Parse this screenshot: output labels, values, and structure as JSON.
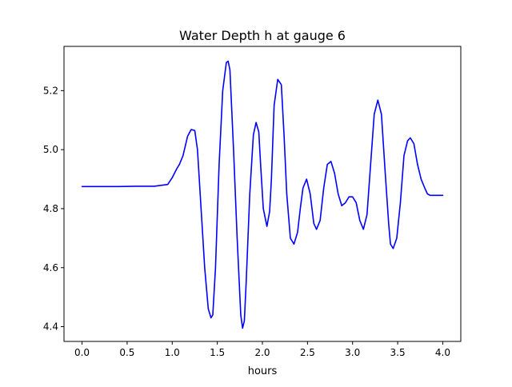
{
  "chart_data": {
    "type": "line",
    "title": "Water Depth h at gauge 6",
    "xlabel": "hours",
    "ylabel": "",
    "xlim": [
      -0.2,
      4.2
    ],
    "ylim": [
      4.35,
      5.35
    ],
    "xticks": [
      0.0,
      0.5,
      1.0,
      1.5,
      2.0,
      2.5,
      3.0,
      3.5,
      4.0
    ],
    "xtick_labels": [
      "0.0",
      "0.5",
      "1.0",
      "1.5",
      "2.0",
      "2.5",
      "3.0",
      "3.5",
      "4.0"
    ],
    "yticks": [
      4.4,
      4.6,
      4.8,
      5.0,
      5.2
    ],
    "ytick_labels": [
      "4.4",
      "4.6",
      "4.8",
      "5.0",
      "5.2"
    ],
    "grid": false,
    "legend": "none",
    "series": [
      {
        "color": "#0000ff",
        "x": [
          0.0,
          0.2,
          0.4,
          0.6,
          0.8,
          0.95,
          1.0,
          1.05,
          1.08,
          1.12,
          1.17,
          1.21,
          1.25,
          1.28,
          1.32,
          1.36,
          1.4,
          1.43,
          1.45,
          1.48,
          1.52,
          1.56,
          1.6,
          1.62,
          1.64,
          1.68,
          1.72,
          1.76,
          1.78,
          1.8,
          1.82,
          1.86,
          1.9,
          1.93,
          1.96,
          1.98,
          2.01,
          2.05,
          2.08,
          2.1,
          2.13,
          2.17,
          2.21,
          2.24,
          2.27,
          2.31,
          2.35,
          2.39,
          2.42,
          2.45,
          2.49,
          2.53,
          2.57,
          2.6,
          2.64,
          2.68,
          2.72,
          2.76,
          2.8,
          2.84,
          2.88,
          2.92,
          2.96,
          3.0,
          3.04,
          3.08,
          3.12,
          3.16,
          3.2,
          3.24,
          3.28,
          3.32,
          3.36,
          3.4,
          3.42,
          3.45,
          3.49,
          3.53,
          3.57,
          3.61,
          3.64,
          3.68,
          3.72,
          3.76,
          3.8,
          3.83,
          3.86,
          3.9,
          3.95,
          4.0
        ],
        "y": [
          4.875,
          4.875,
          4.875,
          4.876,
          4.876,
          4.882,
          4.905,
          4.935,
          4.95,
          4.98,
          5.045,
          5.068,
          5.065,
          5.0,
          4.8,
          4.6,
          4.46,
          4.43,
          4.44,
          4.6,
          4.95,
          5.2,
          5.295,
          5.3,
          5.27,
          5.0,
          4.7,
          4.44,
          4.395,
          4.42,
          4.55,
          4.85,
          5.05,
          5.092,
          5.06,
          4.95,
          4.8,
          4.74,
          4.79,
          4.9,
          5.15,
          5.238,
          5.22,
          5.05,
          4.85,
          4.7,
          4.68,
          4.72,
          4.8,
          4.87,
          4.9,
          4.85,
          4.75,
          4.73,
          4.76,
          4.87,
          4.95,
          4.96,
          4.92,
          4.85,
          4.81,
          4.82,
          4.84,
          4.84,
          4.82,
          4.76,
          4.73,
          4.78,
          4.95,
          5.12,
          5.168,
          5.12,
          4.93,
          4.75,
          4.68,
          4.665,
          4.7,
          4.82,
          4.98,
          5.03,
          5.04,
          5.02,
          4.95,
          4.9,
          4.87,
          4.85,
          4.845,
          4.845,
          4.845,
          4.845
        ]
      }
    ]
  }
}
